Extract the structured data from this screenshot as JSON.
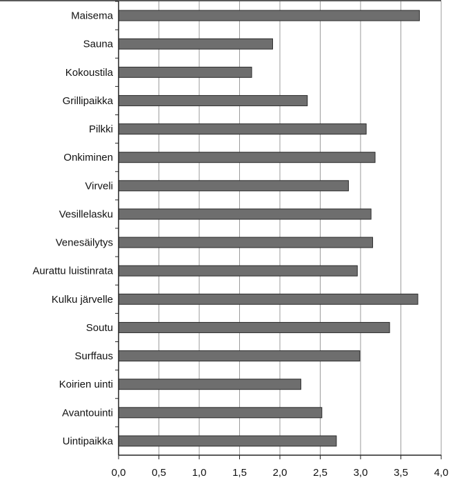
{
  "chart_data": {
    "type": "bar",
    "orientation": "horizontal",
    "categories": [
      "Maisema",
      "Sauna",
      "Kokoustila",
      "Grillipaikka",
      "Pilkki",
      "Onkiminen",
      "Virveli",
      "Vesillelasku",
      "Venesäilytys",
      "Aurattu luistinrata",
      "Kulku järvelle",
      "Soutu",
      "Surffaus",
      "Koirien uinti",
      "Avantouinti",
      "Uintipaikka"
    ],
    "values": [
      3.73,
      1.91,
      1.65,
      2.34,
      3.07,
      3.18,
      2.85,
      3.13,
      3.15,
      2.96,
      3.71,
      3.36,
      2.99,
      2.26,
      2.52,
      2.7
    ],
    "xlim": [
      0,
      4.0
    ],
    "xticks": [
      "0,0",
      "0,5",
      "1,0",
      "1,5",
      "2,0",
      "2,5",
      "3,0",
      "3,5",
      "4,0"
    ],
    "title": "",
    "xlabel": "",
    "ylabel": "",
    "grid": "vertical",
    "legend": "none",
    "colors": {
      "bar_fill": "#6e6e6e",
      "bar_stroke": "#2a2a2a",
      "grid": "#9a9a9a",
      "axis": "#222222",
      "background": "#ffffff"
    }
  }
}
